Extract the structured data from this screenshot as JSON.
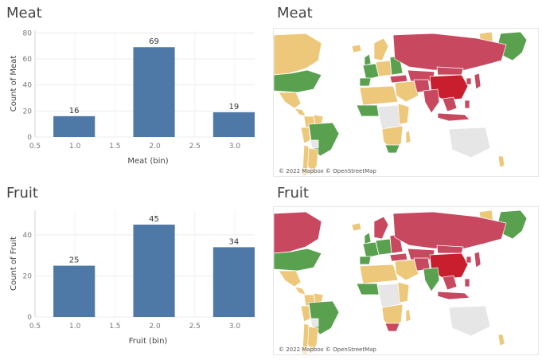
{
  "colors": {
    "bar": "#4e79a7",
    "high": "#c7485f",
    "mid": "#59a14f",
    "low": "#edc87b",
    "nodata": "#e6e6e6",
    "red": "#c81e2d"
  },
  "panels": {
    "meat_chart_title": "Meat",
    "meat_map_title": "Meat",
    "fruit_chart_title": "Fruit",
    "fruit_map_title": "Fruit",
    "meat_map_attribution": "© 2022 Mapbox © OpenStreetMap",
    "fruit_map_attribution": "© 2022 Mapbox © OpenStreetMap"
  },
  "chart_data": [
    {
      "type": "bar",
      "title": "Meat",
      "xlabel": "Meat (bin)",
      "ylabel": "Count of Meat",
      "x": [
        1.0,
        2.0,
        3.0
      ],
      "values": [
        16,
        69,
        19
      ],
      "labels": [
        "16",
        "69",
        "19"
      ],
      "xlim": [
        0.5,
        3.25
      ],
      "xticks": [
        "0.5",
        "1.0",
        "1.5",
        "2.0",
        "2.5",
        "3.0"
      ],
      "ylim": [
        0,
        82
      ],
      "yticks": [
        "0",
        "20",
        "40",
        "60",
        "80"
      ]
    },
    {
      "type": "bar",
      "title": "Fruit",
      "xlabel": "Fruit (bin)",
      "ylabel": "Count of Fruit",
      "x": [
        1.0,
        2.0,
        3.0
      ],
      "values": [
        25,
        45,
        34
      ],
      "labels": [
        "25",
        "45",
        "34"
      ],
      "xlim": [
        0.5,
        3.25
      ],
      "xticks": [
        "0.5",
        "1.0",
        "1.5",
        "2.0",
        "2.5",
        "3.0"
      ],
      "ylim": [
        0,
        52
      ],
      "yticks": [
        "0",
        "20",
        "40"
      ]
    }
  ]
}
